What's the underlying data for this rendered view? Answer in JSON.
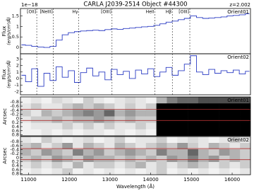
{
  "chart_data": [
    {
      "type": "line",
      "title": "CARLA J2039-2514 Object #44300",
      "subtitle": "z=2.002",
      "label": "Orient01",
      "ylabel": [
        "Flux",
        "(erg/s/cm²/Å)"
      ],
      "offset_label": "1e−18",
      "color": "#2b3cc4",
      "xlim": [
        10800,
        16450
      ],
      "ylim": [
        -0.3,
        1.85
      ],
      "yticks": [
        0.0,
        0.5,
        1.0,
        1.5
      ],
      "step": true,
      "line_markers": [
        {
          "label": "[OII]",
          "value": 11200
        },
        {
          "label": "[NeIII]",
          "value": 11610
        },
        {
          "label": "Hγ",
          "value": 12230
        },
        {
          "label": "[OIII]",
          "value": 13050
        },
        {
          "label": "HeII",
          "value": 14100
        },
        {
          "label": "Hβ",
          "value": 14530
        },
        {
          "label": "[OIII]",
          "value": 14960
        }
      ],
      "x": [
        10850,
        11000,
        11150,
        11300,
        11450,
        11600,
        11750,
        11900,
        12050,
        12200,
        12350,
        12500,
        12650,
        12800,
        12950,
        13100,
        13250,
        13400,
        13550,
        13700,
        13850,
        14000,
        14150,
        14300,
        14450,
        14600,
        14750,
        14900,
        15050,
        15200,
        15350,
        15500,
        15650,
        15800,
        15950,
        16100,
        16250,
        16400
      ],
      "values": [
        0.12,
        0.1,
        0.05,
        0.02,
        0.0,
        0.05,
        0.35,
        0.6,
        0.7,
        0.75,
        0.78,
        0.8,
        0.82,
        0.8,
        0.85,
        0.88,
        0.86,
        0.9,
        0.92,
        0.95,
        0.98,
        1.0,
        1.05,
        1.12,
        1.2,
        1.25,
        1.32,
        1.38,
        1.5,
        1.42,
        1.38,
        1.4,
        1.42,
        1.45,
        1.5,
        1.52,
        1.55,
        1.6
      ]
    },
    {
      "type": "line",
      "label": "Orient02",
      "ylabel": [
        "Flux",
        "(erg/s/cm²/Å)"
      ],
      "color": "#2b3cc4",
      "xlim": [
        10800,
        16450
      ],
      "ylim": [
        -2.5,
        3.8
      ],
      "yticks": [
        -2,
        -1,
        0,
        1,
        2,
        3
      ],
      "step": true,
      "x": [
        10850,
        11000,
        11150,
        11300,
        11450,
        11600,
        11750,
        11900,
        12050,
        12200,
        12350,
        12500,
        12650,
        12800,
        12950,
        13100,
        13250,
        13400,
        13550,
        13700,
        13850,
        14000,
        14150,
        14300,
        14450,
        14600,
        14750,
        14900,
        15050,
        15200,
        15350,
        15500,
        15650,
        15800,
        15950,
        16100,
        16250,
        16400
      ],
      "values": [
        0.5,
        -0.5,
        1.5,
        -1.2,
        0.8,
        -0.3,
        1.8,
        0.2,
        1.2,
        -0.6,
        0.9,
        1.6,
        0.4,
        1.0,
        -0.2,
        1.4,
        0.6,
        1.1,
        0.0,
        1.3,
        0.7,
        1.5,
        0.3,
        1.0,
        1.7,
        0.5,
        1.2,
        2.2,
        3.5,
        1.0,
        0.6,
        1.4,
        0.8,
        1.2,
        0.9,
        1.3,
        0.7,
        1.1
      ]
    },
    {
      "type": "heatmap",
      "label": "Orient01",
      "ylabel": "Arcsec",
      "invert_y": true,
      "xlim": [
        10800,
        16450
      ],
      "ylim": [
        -1.05,
        0.85
      ],
      "yticks": [
        -0.8,
        -0.6,
        -0.4,
        -0.2,
        0.0,
        0.2,
        0.4,
        0.6,
        0.8
      ],
      "trace_lines": [
        -0.45,
        0.1
      ],
      "trace_color": "#b03030",
      "z": [
        [
          0.05,
          0.1,
          0.05,
          0.15,
          0.1,
          0.05,
          0.2,
          0.1,
          0.05,
          0.1,
          0.15,
          0.1,
          0.05,
          0.3,
          0.5,
          0.6,
          0.6,
          0.7,
          0.7,
          0.7,
          0.7,
          0.7
        ],
        [
          0.1,
          0.2,
          0.1,
          0.1,
          0.2,
          0.3,
          0.2,
          0.3,
          0.2,
          0.1,
          0.2,
          0.1,
          0.2,
          1,
          1,
          1,
          1,
          1,
          1,
          1,
          1,
          1
        ],
        [
          0.2,
          0.1,
          0.3,
          0.2,
          0.3,
          0.4,
          0.5,
          0.4,
          0.6,
          0.3,
          0.4,
          0.3,
          0.3,
          1,
          1,
          1,
          1,
          1,
          1,
          1,
          1,
          1
        ],
        [
          0.1,
          0.2,
          0.2,
          0.3,
          0.2,
          0.3,
          0.3,
          0.4,
          0.3,
          0.2,
          0.3,
          0.2,
          0.2,
          1,
          1,
          1,
          1,
          1,
          1,
          1,
          1,
          1
        ],
        [
          0.05,
          0.1,
          0.1,
          0.1,
          0.2,
          0.1,
          0.2,
          0.1,
          0.2,
          0.1,
          0.1,
          0.2,
          0.1,
          1,
          1,
          1,
          1,
          1,
          1,
          1,
          1,
          1
        ],
        [
          0.05,
          0.05,
          0.1,
          0.05,
          0.1,
          0.05,
          0.1,
          0.1,
          0.05,
          0.1,
          0.05,
          0.1,
          0.05,
          1,
          1,
          1,
          1,
          1,
          1,
          1,
          1,
          1
        ]
      ]
    },
    {
      "type": "heatmap",
      "label": "Orient02",
      "ylabel": "Arcsec",
      "xlabel": "Wavelength (Å)",
      "invert_y": true,
      "xlim": [
        10800,
        16450
      ],
      "ylim": [
        -1.05,
        0.85
      ],
      "yticks": [
        -0.8,
        -0.6,
        -0.4,
        -0.2,
        0.0,
        0.2,
        0.4,
        0.6,
        0.8
      ],
      "xticks": [
        11000,
        12000,
        13000,
        14000,
        15000,
        16000
      ],
      "trace_lines": [
        -0.45,
        0.1
      ],
      "trace_color": "#b03030",
      "z": [
        [
          0.1,
          0.05,
          0.2,
          0.1,
          0.05,
          0.1,
          0.15,
          0.05,
          0.1,
          0.2,
          0.05,
          0.1,
          0.1,
          0.2,
          0.05,
          0.1,
          0.15,
          0.1,
          0.05,
          0.1,
          0.2,
          0.1
        ],
        [
          0.2,
          0.3,
          0.1,
          0.2,
          0.4,
          0.1,
          0.3,
          0.2,
          0.1,
          0.3,
          0.2,
          0.1,
          0.2,
          0.3,
          0.2,
          0.4,
          0.2,
          0.1,
          0.3,
          0.2,
          0.1,
          0.2
        ],
        [
          0.3,
          0.2,
          0.4,
          0.3,
          0.2,
          0.5,
          0.3,
          0.4,
          0.2,
          0.3,
          0.4,
          0.3,
          0.2,
          0.5,
          0.3,
          0.3,
          0.6,
          0.3,
          0.2,
          0.4,
          0.3,
          0.2
        ],
        [
          0.2,
          0.3,
          0.2,
          0.4,
          0.3,
          0.2,
          0.4,
          0.3,
          0.3,
          0.2,
          0.3,
          0.2,
          0.3,
          0.2,
          0.4,
          0.3,
          0.5,
          0.3,
          0.4,
          0.2,
          0.3,
          0.2
        ],
        [
          0.1,
          0.2,
          0.1,
          0.2,
          0.1,
          0.3,
          0.1,
          0.2,
          0.2,
          0.1,
          0.2,
          0.3,
          0.1,
          0.2,
          0.1,
          0.2,
          0.3,
          0.2,
          0.1,
          0.2,
          0.1,
          0.2
        ],
        [
          0.05,
          0.1,
          0.05,
          0.1,
          0.2,
          0.05,
          0.1,
          0.05,
          0.1,
          0.05,
          0.1,
          0.05,
          0.1,
          0.2,
          0.05,
          0.1,
          0.05,
          0.1,
          0.05,
          0.1,
          0.05,
          0.1
        ]
      ]
    }
  ]
}
